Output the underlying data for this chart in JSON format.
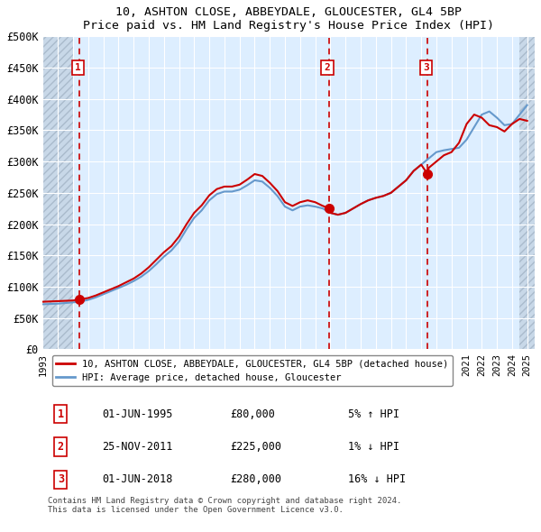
{
  "title1": "10, ASHTON CLOSE, ABBEYDALE, GLOUCESTER, GL4 5BP",
  "title2": "Price paid vs. HM Land Registry's House Price Index (HPI)",
  "ylabel_ticks": [
    "£0",
    "£50K",
    "£100K",
    "£150K",
    "£200K",
    "£250K",
    "£300K",
    "£350K",
    "£400K",
    "£450K",
    "£500K"
  ],
  "ytick_values": [
    0,
    50000,
    100000,
    150000,
    200000,
    250000,
    300000,
    350000,
    400000,
    450000,
    500000
  ],
  "xlim_start": 1993.0,
  "xlim_end": 2025.5,
  "ylim": [
    0,
    500000
  ],
  "hpi_color": "#6699cc",
  "price_color": "#cc0000",
  "sale_marker_color": "#cc0000",
  "sale1_x": 1995.42,
  "sale1_y": 80000,
  "sale2_x": 2011.9,
  "sale2_y": 225000,
  "sale3_x": 2018.42,
  "sale3_y": 280000,
  "legend_label_price": "10, ASHTON CLOSE, ABBEYDALE, GLOUCESTER, GL4 5BP (detached house)",
  "legend_label_hpi": "HPI: Average price, detached house, Gloucester",
  "table_rows": [
    [
      "1",
      "01-JUN-1995",
      "£80,000",
      "5% ↑ HPI"
    ],
    [
      "2",
      "25-NOV-2011",
      "£225,000",
      "1% ↓ HPI"
    ],
    [
      "3",
      "01-JUN-2018",
      "£280,000",
      "16% ↓ HPI"
    ]
  ],
  "footer": "Contains HM Land Registry data © Crown copyright and database right 2024.\nThis data is licensed under the Open Government Licence v3.0.",
  "bg_color": "#ddeeff",
  "hatch_color": "#bbccdd",
  "grid_color": "#ffffff",
  "hpi_data_x": [
    1993,
    1993.5,
    1994,
    1994.5,
    1995,
    1995.5,
    1996,
    1996.5,
    1997,
    1997.5,
    1998,
    1998.5,
    1999,
    1999.5,
    2000,
    2000.5,
    2001,
    2001.5,
    2002,
    2002.5,
    2003,
    2003.5,
    2004,
    2004.5,
    2005,
    2005.5,
    2006,
    2006.5,
    2007,
    2007.5,
    2008,
    2008.5,
    2009,
    2009.5,
    2010,
    2010.5,
    2011,
    2011.5,
    2012,
    2012.5,
    2013,
    2013.5,
    2014,
    2014.5,
    2015,
    2015.5,
    2016,
    2016.5,
    2017,
    2017.5,
    2018,
    2018.5,
    2019,
    2019.5,
    2020,
    2020.5,
    2021,
    2021.5,
    2022,
    2022.5,
    2023,
    2023.5,
    2024,
    2024.5,
    2025
  ],
  "hpi_data_y": [
    72000,
    72500,
    73000,
    74000,
    75000,
    76500,
    79000,
    83000,
    88000,
    93000,
    98000,
    103000,
    109000,
    116000,
    125000,
    136000,
    148000,
    158000,
    172000,
    192000,
    210000,
    222000,
    238000,
    248000,
    252000,
    252000,
    255000,
    262000,
    270000,
    268000,
    258000,
    245000,
    228000,
    222000,
    228000,
    230000,
    228000,
    225000,
    218000,
    215000,
    218000,
    225000,
    232000,
    238000,
    242000,
    245000,
    250000,
    260000,
    270000,
    285000,
    295000,
    305000,
    315000,
    318000,
    320000,
    322000,
    335000,
    355000,
    375000,
    380000,
    370000,
    358000,
    360000,
    375000,
    390000
  ],
  "price_data_x": [
    1993,
    1993.5,
    1994,
    1994.5,
    1995,
    1995.5,
    1996,
    1996.5,
    1997,
    1997.5,
    1998,
    1998.5,
    1999,
    1999.5,
    2000,
    2000.5,
    2001,
    2001.5,
    2002,
    2002.5,
    2003,
    2003.5,
    2004,
    2004.5,
    2005,
    2005.5,
    2006,
    2006.5,
    2007,
    2007.5,
    2008,
    2008.5,
    2009,
    2009.5,
    2010,
    2010.5,
    2011,
    2011.42,
    2011.9,
    2012,
    2012.5,
    2013,
    2013.5,
    2014,
    2014.5,
    2015,
    2015.5,
    2016,
    2016.5,
    2017,
    2017.5,
    2018,
    2018.42,
    2018.5,
    2019,
    2019.5,
    2020,
    2020.5,
    2021,
    2021.5,
    2022,
    2022.5,
    2023,
    2023.5,
    2024,
    2024.5,
    2025
  ],
  "price_data_y": [
    76000,
    76500,
    77000,
    77500,
    78000,
    80000,
    82000,
    86000,
    91000,
    96000,
    101000,
    107000,
    113000,
    121000,
    131000,
    143000,
    155000,
    165000,
    180000,
    200000,
    218000,
    230000,
    246000,
    256000,
    260000,
    260000,
    263000,
    271000,
    280000,
    277000,
    266000,
    253000,
    235000,
    229000,
    235000,
    238000,
    235000,
    230000,
    225000,
    218000,
    215000,
    218000,
    225000,
    232000,
    238000,
    242000,
    245000,
    250000,
    260000,
    270000,
    285000,
    295000,
    280000,
    290000,
    300000,
    310000,
    315000,
    330000,
    360000,
    375000,
    370000,
    358000,
    355000,
    348000,
    360000,
    368000,
    365000
  ]
}
